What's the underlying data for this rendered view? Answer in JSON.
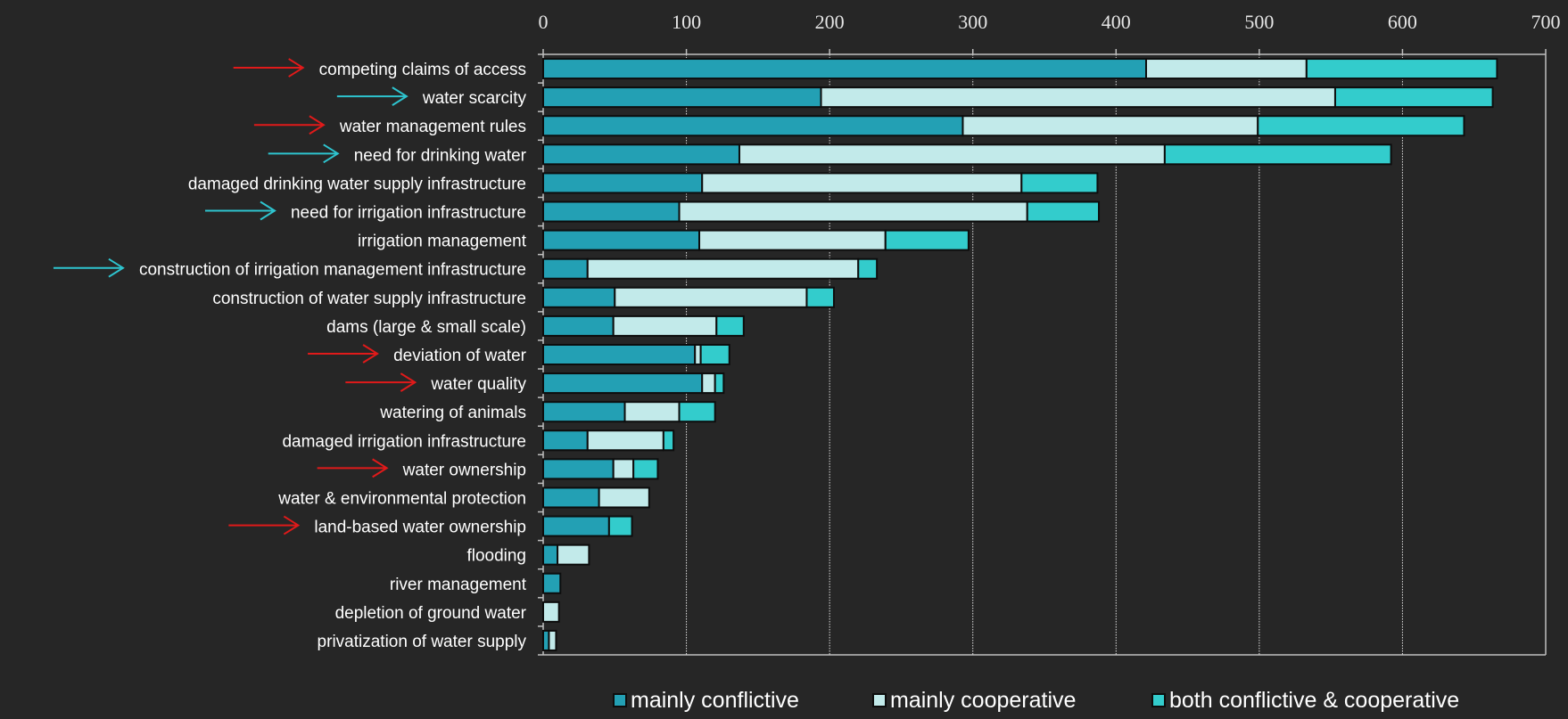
{
  "chart_data": {
    "type": "bar",
    "orientation": "horizontal",
    "stacked": true,
    "xlim": [
      0,
      700
    ],
    "x_ticks": [
      "0",
      "100",
      "200",
      "300",
      "400",
      "500",
      "600",
      "700"
    ],
    "grid": "vertical",
    "legend_position": "bottom",
    "categories": [
      "competing claims of access",
      "water scarcity",
      "water management rules",
      "need for drinking water",
      "damaged drinking water supply infrastructure",
      "need for irrigation infrastructure",
      "irrigation management",
      "construction of irrigation management infrastructure",
      "construction of water supply infrastructure",
      "dams (large & small scale)",
      "deviation of water",
      "water quality",
      "watering of animals",
      "damaged irrigation infrastructure",
      "water ownership",
      "water & environmental protection",
      "land-based water ownership",
      "flooding",
      "river management",
      "depletion of ground water",
      "privatization of water supply"
    ],
    "series": [
      {
        "name": "mainly conflictive",
        "color": "#23a0b4",
        "values": [
          421,
          194,
          293,
          137,
          111,
          95,
          109,
          31,
          50,
          49,
          106,
          111,
          57,
          31,
          49,
          39,
          46,
          10,
          12,
          0,
          4
        ]
      },
      {
        "name": "mainly cooperative",
        "color": "#c2eaea",
        "values": [
          112,
          359,
          206,
          297,
          223,
          243,
          130,
          189,
          134,
          72,
          4,
          9,
          38,
          53,
          14,
          35,
          0,
          22,
          0,
          11,
          5
        ]
      },
      {
        "name": "both conflictive & cooperative",
        "color": "#33cccc",
        "values": [
          133,
          110,
          144,
          158,
          53,
          50,
          58,
          13,
          19,
          19,
          20,
          6,
          25,
          7,
          17,
          0,
          16,
          0,
          0,
          0,
          0
        ]
      }
    ],
    "arrow_markers": [
      {
        "category": "competing claims of access",
        "color": "#e01a1a"
      },
      {
        "category": "water scarcity",
        "color": "#2ec4cf"
      },
      {
        "category": "water management rules",
        "color": "#e01a1a"
      },
      {
        "category": "need for drinking water",
        "color": "#2ec4cf"
      },
      {
        "category": "need for irrigation infrastructure",
        "color": "#2ec4cf"
      },
      {
        "category": "construction of irrigation management infrastructure",
        "color": "#2ec4cf"
      },
      {
        "category": "deviation of water",
        "color": "#e01a1a"
      },
      {
        "category": "water quality",
        "color": "#e01a1a"
      },
      {
        "category": "water ownership",
        "color": "#e01a1a"
      },
      {
        "category": "land-based water ownership",
        "color": "#e01a1a"
      }
    ],
    "colors": {
      "background": "#262626",
      "axis": "#bfbfbf",
      "grid": "#e0e0e0",
      "bar_outline": "#0d0d0d",
      "text": "#ffffff"
    }
  }
}
